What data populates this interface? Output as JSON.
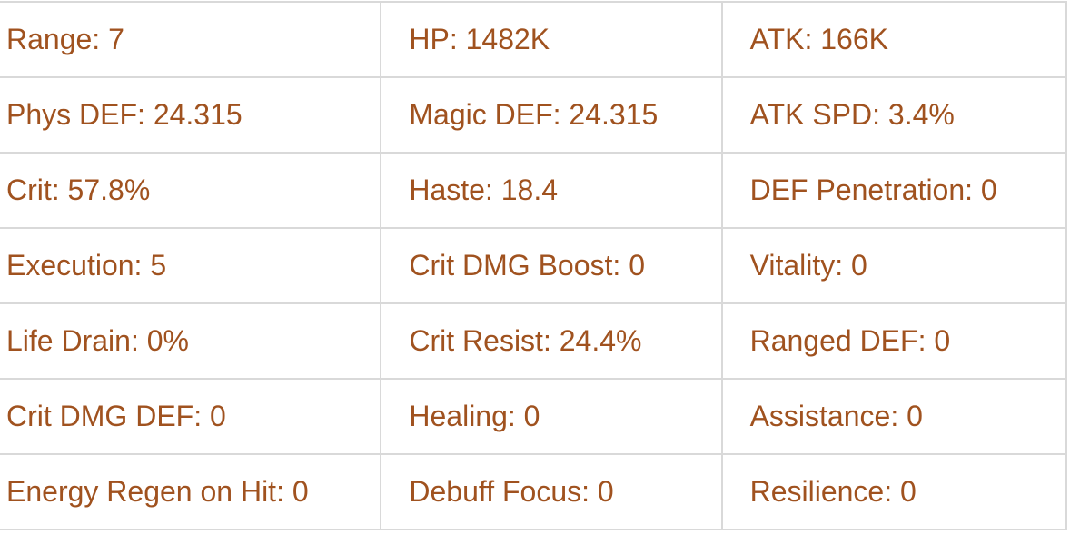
{
  "colors": {
    "text": "#a0521f",
    "border": "#d9d9d9"
  },
  "stats": [
    [
      "Range: 7",
      "HP: 1482K",
      "ATK: 166K"
    ],
    [
      "Phys DEF: 24.315",
      "Magic DEF: 24.315",
      "ATK SPD: 3.4%"
    ],
    [
      "Crit: 57.8%",
      "Haste: 18.4",
      "DEF Penetration: 0"
    ],
    [
      "Execution: 5",
      "Crit DMG Boost: 0",
      "Vitality: 0"
    ],
    [
      "Life Drain: 0%",
      "Crit Resist: 24.4%",
      "Ranged DEF: 0"
    ],
    [
      "Crit DMG DEF: 0",
      "Healing: 0",
      "Assistance: 0"
    ],
    [
      "Energy Regen on Hit: 0",
      "Debuff Focus: 0",
      "Resilience: 0"
    ]
  ]
}
